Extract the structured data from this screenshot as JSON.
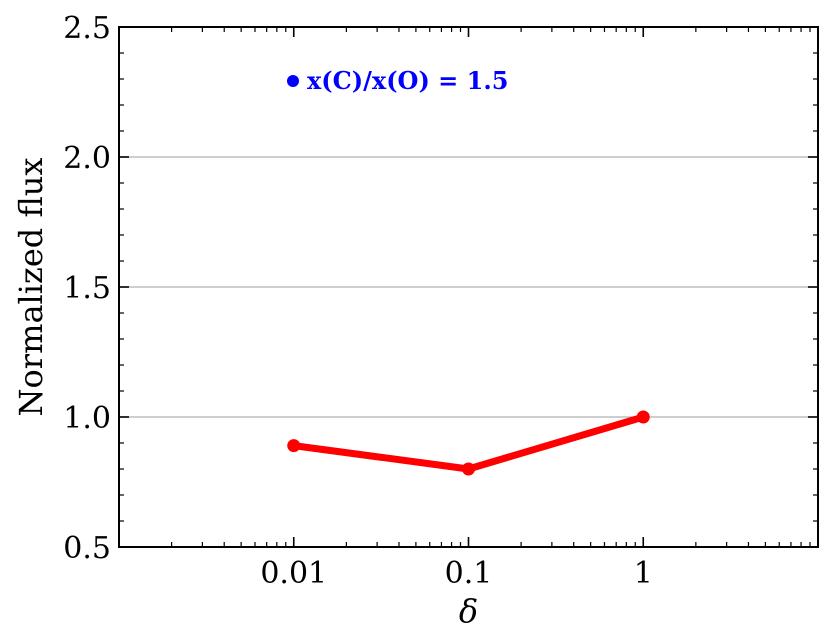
{
  "chart_data": {
    "type": "line",
    "x": [
      0.01,
      0.1,
      1
    ],
    "series": [
      {
        "name": "x(C)/x(O) = 1.5",
        "color": "#ff0000",
        "values": [
          0.89,
          0.8,
          1.0
        ]
      }
    ],
    "xscale": "log",
    "xlim": [
      0.001,
      10
    ],
    "ylim": [
      0.5,
      2.5
    ],
    "xticks": [
      0.01,
      0.1,
      1
    ],
    "xtick_labels": [
      "0.01",
      "0.1",
      "1"
    ],
    "yticks": [
      0.5,
      1.0,
      1.5,
      2.0,
      2.5
    ],
    "ytick_labels": [
      "0.5",
      "1.0",
      "1.5",
      "2.0",
      "2.5"
    ],
    "xlabel": "δ",
    "ylabel": "Normalized flux",
    "grid": "horizontal",
    "legend": {
      "position": "top-left",
      "color": "#0000ff",
      "text": "x(C)/x(O) = 1.5"
    }
  }
}
